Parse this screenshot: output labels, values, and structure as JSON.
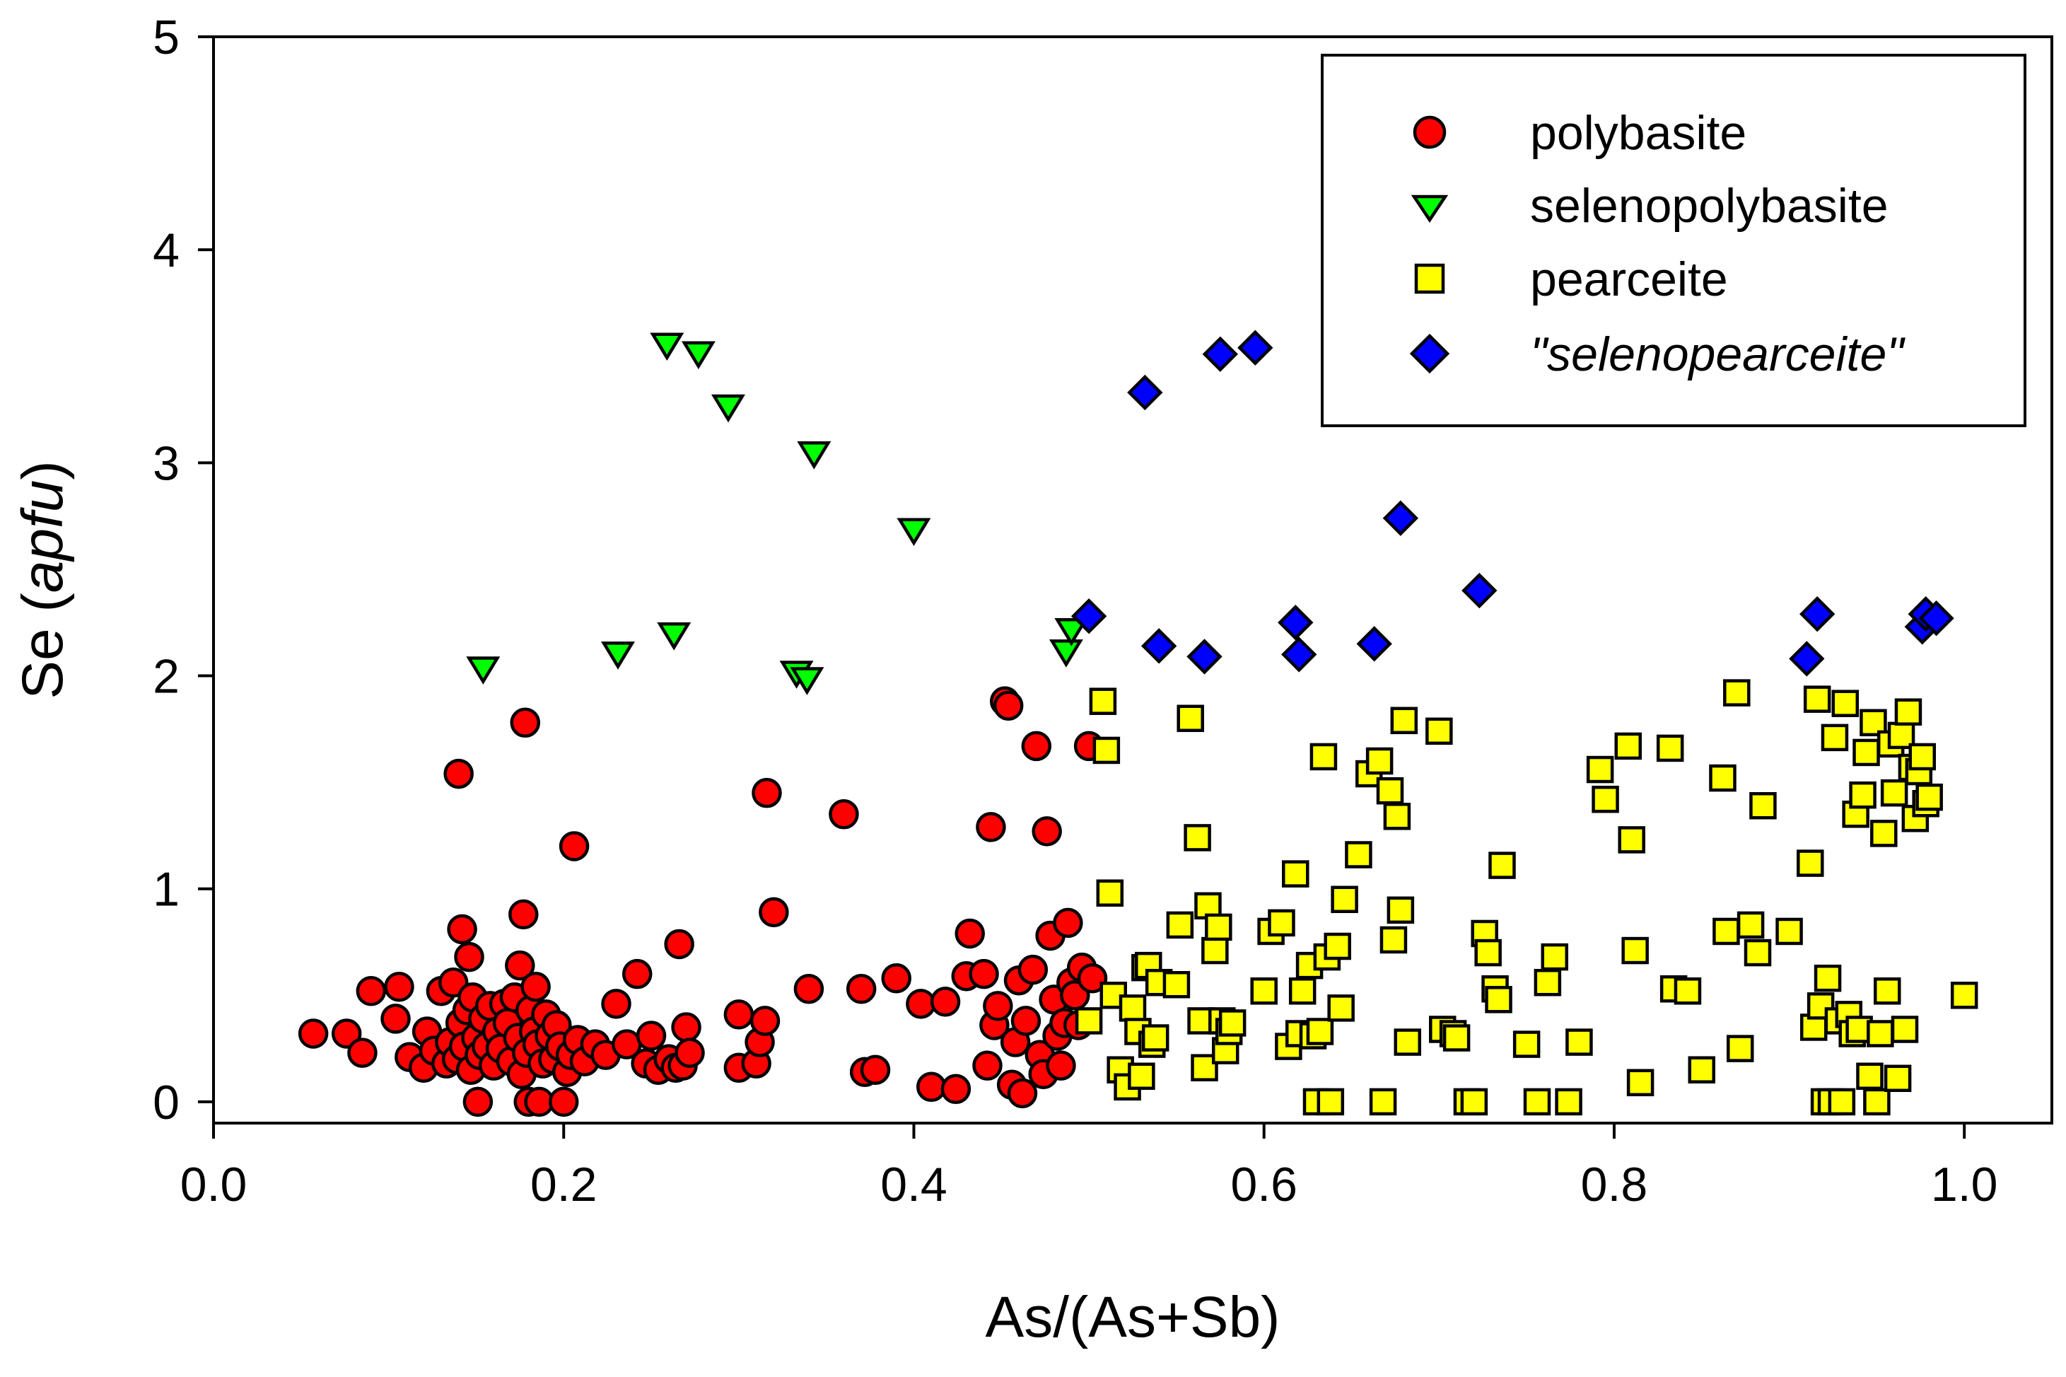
{
  "chart_data": {
    "type": "scatter",
    "title": "",
    "xlabel": "As/(As+Sb)",
    "ylabel_main": "Se (",
    "ylabel_italic": "apfu",
    "ylabel_close": ")",
    "xlim": [
      0.0,
      1.05
    ],
    "ylim": [
      -0.1,
      5.0
    ],
    "x_ticks": [
      0.0,
      0.2,
      0.4,
      0.6,
      0.8,
      1.0
    ],
    "x_tick_labels": [
      "0.0",
      "0.2",
      "0.4",
      "0.6",
      "0.8",
      "1.0"
    ],
    "y_ticks": [
      0,
      1,
      2,
      3,
      4,
      5
    ],
    "y_tick_labels": [
      "0",
      "1",
      "2",
      "3",
      "4",
      "5"
    ],
    "grid": false,
    "legend_position": "top-right",
    "series": [
      {
        "name": "polybasite",
        "marker": "circle",
        "color": "#ff0000",
        "italic": false,
        "points": [
          [
            0.057,
            0.32
          ],
          [
            0.076,
            0.32
          ],
          [
            0.085,
            0.23
          ],
          [
            0.09,
            0.52
          ],
          [
            0.104,
            0.39
          ],
          [
            0.106,
            0.54
          ],
          [
            0.112,
            0.21
          ],
          [
            0.12,
            0.16
          ],
          [
            0.122,
            0.33
          ],
          [
            0.126,
            0.24
          ],
          [
            0.13,
            0.52
          ],
          [
            0.133,
            0.18
          ],
          [
            0.135,
            0.28
          ],
          [
            0.137,
            0.56
          ],
          [
            0.139,
            0.2
          ],
          [
            0.14,
            1.54
          ],
          [
            0.141,
            0.37
          ],
          [
            0.142,
            0.81
          ],
          [
            0.143,
            0.26
          ],
          [
            0.145,
            0.43
          ],
          [
            0.146,
            0.68
          ],
          [
            0.147,
            0.15
          ],
          [
            0.148,
            0.49
          ],
          [
            0.15,
            0.3
          ],
          [
            0.151,
            0.0
          ],
          [
            0.152,
            0.22
          ],
          [
            0.154,
            0.39
          ],
          [
            0.156,
            0.26
          ],
          [
            0.158,
            0.45
          ],
          [
            0.16,
            0.17
          ],
          [
            0.162,
            0.33
          ],
          [
            0.164,
            0.25
          ],
          [
            0.166,
            0.46
          ],
          [
            0.168,
            0.37
          ],
          [
            0.17,
            0.19
          ],
          [
            0.172,
            0.49
          ],
          [
            0.174,
            0.3
          ],
          [
            0.175,
            0.64
          ],
          [
            0.176,
            0.13
          ],
          [
            0.177,
            0.88
          ],
          [
            0.178,
            1.78
          ],
          [
            0.179,
            0.23
          ],
          [
            0.18,
            0.0
          ],
          [
            0.181,
            0.43
          ],
          [
            0.183,
            0.33
          ],
          [
            0.184,
            0.54
          ],
          [
            0.185,
            0.27
          ],
          [
            0.186,
            0.0
          ],
          [
            0.188,
            0.18
          ],
          [
            0.19,
            0.41
          ],
          [
            0.192,
            0.31
          ],
          [
            0.194,
            0.2
          ],
          [
            0.196,
            0.36
          ],
          [
            0.198,
            0.26
          ],
          [
            0.2,
            0.0
          ],
          [
            0.202,
            0.14
          ],
          [
            0.204,
            0.22
          ],
          [
            0.206,
            1.2
          ],
          [
            0.208,
            0.29
          ],
          [
            0.212,
            0.19
          ],
          [
            0.218,
            0.27
          ],
          [
            0.224,
            0.22
          ],
          [
            0.23,
            0.46
          ],
          [
            0.236,
            0.27
          ],
          [
            0.242,
            0.6
          ],
          [
            0.247,
            0.18
          ],
          [
            0.25,
            0.31
          ],
          [
            0.254,
            0.15
          ],
          [
            0.26,
            0.2
          ],
          [
            0.264,
            0.16
          ],
          [
            0.266,
            0.74
          ],
          [
            0.268,
            0.17
          ],
          [
            0.27,
            0.35
          ],
          [
            0.272,
            0.23
          ],
          [
            0.3,
            0.16
          ],
          [
            0.3,
            0.41
          ],
          [
            0.31,
            0.18
          ],
          [
            0.312,
            0.28
          ],
          [
            0.315,
            0.38
          ],
          [
            0.316,
            1.45
          ],
          [
            0.32,
            0.89
          ],
          [
            0.34,
            0.53
          ],
          [
            0.36,
            1.35
          ],
          [
            0.37,
            0.53
          ],
          [
            0.372,
            0.14
          ],
          [
            0.378,
            0.15
          ],
          [
            0.39,
            0.58
          ],
          [
            0.404,
            0.46
          ],
          [
            0.41,
            0.07
          ],
          [
            0.418,
            0.47
          ],
          [
            0.424,
            0.06
          ],
          [
            0.43,
            0.59
          ],
          [
            0.432,
            0.79
          ],
          [
            0.44,
            0.6
          ],
          [
            0.442,
            0.17
          ],
          [
            0.444,
            1.29
          ],
          [
            0.446,
            0.36
          ],
          [
            0.448,
            0.45
          ],
          [
            0.452,
            1.88
          ],
          [
            0.454,
            1.86
          ],
          [
            0.456,
            0.08
          ],
          [
            0.458,
            0.28
          ],
          [
            0.46,
            0.57
          ],
          [
            0.462,
            0.04
          ],
          [
            0.464,
            0.38
          ],
          [
            0.468,
            0.62
          ],
          [
            0.47,
            1.67
          ],
          [
            0.472,
            0.22
          ],
          [
            0.474,
            0.13
          ],
          [
            0.476,
            1.27
          ],
          [
            0.478,
            0.78
          ],
          [
            0.48,
            0.48
          ],
          [
            0.482,
            0.31
          ],
          [
            0.484,
            0.17
          ],
          [
            0.486,
            0.37
          ],
          [
            0.488,
            0.84
          ],
          [
            0.49,
            0.56
          ],
          [
            0.492,
            0.5
          ],
          [
            0.494,
            0.36
          ],
          [
            0.496,
            0.63
          ],
          [
            0.5,
            1.67
          ],
          [
            0.502,
            0.58
          ]
        ]
      },
      {
        "name": "selenopolybasite",
        "marker": "triangle-down",
        "color": "#00ff00",
        "italic": false,
        "points": [
          [
            0.154,
            2.04
          ],
          [
            0.231,
            2.11
          ],
          [
            0.259,
            3.56
          ],
          [
            0.263,
            2.2
          ],
          [
            0.277,
            3.52
          ],
          [
            0.294,
            3.27
          ],
          [
            0.333,
            2.02
          ],
          [
            0.339,
            1.99
          ],
          [
            0.343,
            3.05
          ],
          [
            0.4,
            2.69
          ],
          [
            0.487,
            2.12
          ],
          [
            0.49,
            2.22
          ]
        ]
      },
      {
        "name": "pearceite",
        "marker": "square",
        "color": "#ffff00",
        "italic": false,
        "points": [
          [
            0.5,
            0.38
          ],
          [
            0.508,
            1.88
          ],
          [
            0.51,
            1.65
          ],
          [
            0.512,
            0.98
          ],
          [
            0.514,
            0.5
          ],
          [
            0.518,
            0.15
          ],
          [
            0.522,
            0.07
          ],
          [
            0.525,
            0.44
          ],
          [
            0.528,
            0.33
          ],
          [
            0.53,
            0.12
          ],
          [
            0.532,
            0.63
          ],
          [
            0.534,
            0.64
          ],
          [
            0.536,
            0.27
          ],
          [
            0.538,
            0.3
          ],
          [
            0.54,
            0.56
          ],
          [
            0.55,
            0.55
          ],
          [
            0.552,
            0.83
          ],
          [
            0.558,
            1.8
          ],
          [
            0.562,
            1.24
          ],
          [
            0.564,
            0.38
          ],
          [
            0.566,
            0.16
          ],
          [
            0.568,
            0.92
          ],
          [
            0.572,
            0.71
          ],
          [
            0.574,
            0.82
          ],
          [
            0.576,
            0.38
          ],
          [
            0.578,
            0.24
          ],
          [
            0.58,
            0.33
          ],
          [
            0.582,
            0.37
          ],
          [
            0.6,
            0.52
          ],
          [
            0.604,
            0.8
          ],
          [
            0.61,
            0.84
          ],
          [
            0.614,
            0.26
          ],
          [
            0.618,
            1.07
          ],
          [
            0.62,
            0.32
          ],
          [
            0.622,
            0.52
          ],
          [
            0.626,
            0.64
          ],
          [
            0.628,
            0.31
          ],
          [
            0.63,
            0.0
          ],
          [
            0.632,
            0.33
          ],
          [
            0.634,
            1.62
          ],
          [
            0.636,
            0.68
          ],
          [
            0.638,
            0.0
          ],
          [
            0.642,
            0.73
          ],
          [
            0.644,
            0.44
          ],
          [
            0.646,
            0.95
          ],
          [
            0.654,
            1.16
          ],
          [
            0.66,
            1.54
          ],
          [
            0.666,
            1.6
          ],
          [
            0.668,
            0.0
          ],
          [
            0.672,
            1.46
          ],
          [
            0.674,
            0.76
          ],
          [
            0.676,
            1.34
          ],
          [
            0.678,
            0.9
          ],
          [
            0.68,
            1.79
          ],
          [
            0.682,
            0.28
          ],
          [
            0.7,
            1.74
          ],
          [
            0.702,
            0.34
          ],
          [
            0.708,
            0.32
          ],
          [
            0.71,
            0.3
          ],
          [
            0.716,
            0.0
          ],
          [
            0.72,
            0.0
          ],
          [
            0.726,
            0.79
          ],
          [
            0.728,
            0.7
          ],
          [
            0.732,
            0.53
          ],
          [
            0.734,
            0.48
          ],
          [
            0.736,
            1.11
          ],
          [
            0.75,
            0.27
          ],
          [
            0.756,
            0.0
          ],
          [
            0.762,
            0.56
          ],
          [
            0.766,
            0.68
          ],
          [
            0.774,
            0.0
          ],
          [
            0.78,
            0.28
          ],
          [
            0.792,
            1.56
          ],
          [
            0.795,
            1.42
          ],
          [
            0.808,
            1.67
          ],
          [
            0.81,
            1.23
          ],
          [
            0.812,
            0.71
          ],
          [
            0.815,
            0.09
          ],
          [
            0.832,
            1.66
          ],
          [
            0.834,
            0.53
          ],
          [
            0.842,
            0.52
          ],
          [
            0.85,
            0.15
          ],
          [
            0.862,
            1.52
          ],
          [
            0.864,
            0.8
          ],
          [
            0.87,
            1.92
          ],
          [
            0.872,
            0.25
          ],
          [
            0.878,
            0.83
          ],
          [
            0.882,
            0.7
          ],
          [
            0.885,
            1.39
          ],
          [
            0.9,
            0.8
          ],
          [
            0.912,
            1.12
          ],
          [
            0.914,
            0.35
          ],
          [
            0.916,
            1.89
          ],
          [
            0.918,
            0.45
          ],
          [
            0.92,
            0.0
          ],
          [
            0.922,
            0.58
          ],
          [
            0.924,
            0.0
          ],
          [
            0.926,
            1.71
          ],
          [
            0.928,
            0.38
          ],
          [
            0.93,
            0.0
          ],
          [
            0.932,
            1.87
          ],
          [
            0.934,
            0.41
          ],
          [
            0.936,
            0.32
          ],
          [
            0.938,
            1.35
          ],
          [
            0.94,
            0.34
          ],
          [
            0.942,
            1.44
          ],
          [
            0.944,
            1.64
          ],
          [
            0.946,
            0.12
          ],
          [
            0.948,
            1.78
          ],
          [
            0.95,
            0.0
          ],
          [
            0.952,
            0.32
          ],
          [
            0.954,
            1.26
          ],
          [
            0.956,
            0.52
          ],
          [
            0.958,
            1.68
          ],
          [
            0.96,
            1.45
          ],
          [
            0.962,
            0.11
          ],
          [
            0.964,
            1.72
          ],
          [
            0.966,
            0.34
          ],
          [
            0.968,
            1.83
          ],
          [
            0.97,
            1.57
          ],
          [
            0.972,
            1.33
          ],
          [
            0.974,
            1.55
          ],
          [
            0.976,
            1.62
          ],
          [
            0.978,
            1.4
          ],
          [
            0.98,
            1.43
          ],
          [
            1.0,
            0.5
          ]
        ]
      },
      {
        "name": "\"selenopearceite\"",
        "marker": "diamond",
        "color": "#0000ff",
        "italic": true,
        "points": [
          [
            0.5,
            2.28
          ],
          [
            0.532,
            3.33
          ],
          [
            0.54,
            2.14
          ],
          [
            0.566,
            2.09
          ],
          [
            0.575,
            3.51
          ],
          [
            0.595,
            3.54
          ],
          [
            0.618,
            2.25
          ],
          [
            0.62,
            2.1
          ],
          [
            0.663,
            2.15
          ],
          [
            0.678,
            2.74
          ],
          [
            0.723,
            2.4
          ],
          [
            0.91,
            2.08
          ],
          [
            0.916,
            2.29
          ],
          [
            0.976,
            2.23
          ],
          [
            0.978,
            2.29
          ],
          [
            0.984,
            2.27
          ]
        ]
      }
    ]
  }
}
